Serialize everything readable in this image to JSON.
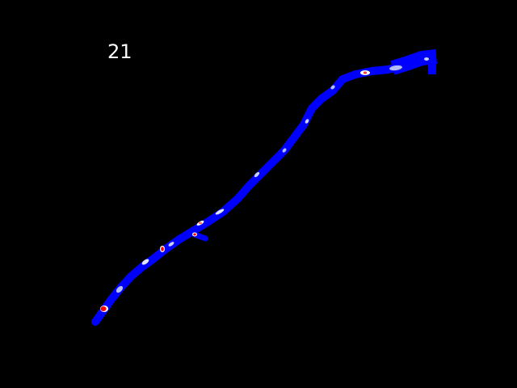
{
  "frame": {
    "number_label": "21"
  },
  "colors": {
    "background": "#000000",
    "vessel": "#0000ff",
    "highlight": "#ffffff",
    "pale": "#b4bdf5",
    "hotspot": "#ff0000",
    "label": "#ffffff"
  }
}
